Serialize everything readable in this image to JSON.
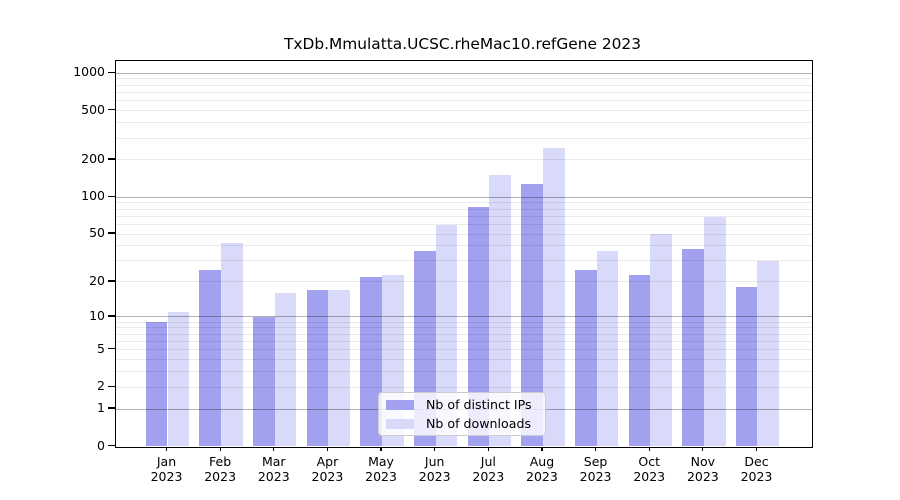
{
  "title": "TxDb.Mmulatta.UCSC.rheMac10.refGene 2023",
  "chart_data": {
    "type": "bar",
    "categories": [
      "Jan 2023",
      "Feb 2023",
      "Mar 2023",
      "Apr 2023",
      "May 2023",
      "Jun 2023",
      "Jul 2023",
      "Aug 2023",
      "Sep 2023",
      "Oct 2023",
      "Nov 2023",
      "Dec 2023"
    ],
    "series": [
      {
        "name": "Nb of distinct IPs",
        "color": "#a1a1f0",
        "values": [
          9,
          25,
          10,
          17,
          22,
          36,
          83,
          127,
          25,
          23,
          38,
          18
        ]
      },
      {
        "name": "Nb of downloads",
        "color": "#d9d9f9",
        "values": [
          11,
          42,
          16,
          17,
          23,
          59,
          151,
          252,
          36,
          50,
          69,
          30
        ]
      }
    ],
    "yscale": "log1p",
    "ylim": [
      0,
      1265
    ],
    "yticks": [
      0,
      1,
      2,
      5,
      10,
      20,
      50,
      100,
      200,
      500,
      1000
    ],
    "minor_grid_mantissas": [
      2,
      3,
      4,
      5,
      6,
      7,
      8,
      9
    ],
    "major_grid_values": [
      1,
      10,
      100,
      1000
    ],
    "grid": "horizontal, major + minor, drawn over bars",
    "legend_position": "lower center, inside plot"
  },
  "colors": {
    "background": "#ffffff",
    "axis": "#000000",
    "major_grid": "#b3b3b3",
    "minor_grid": "#eaeaea",
    "legend_border": "#cccccc"
  }
}
